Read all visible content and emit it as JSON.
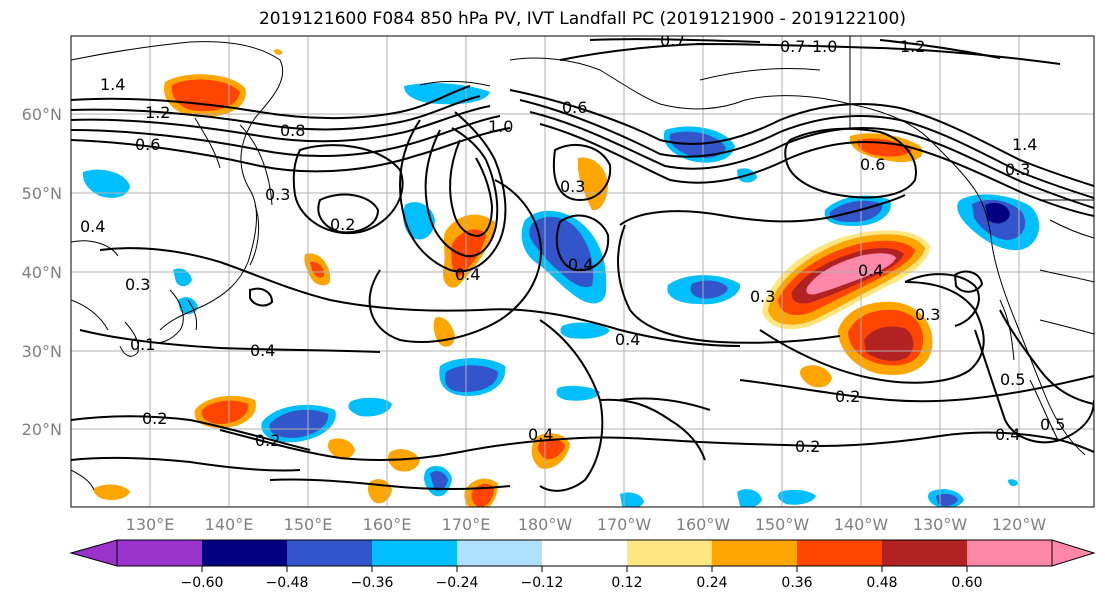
{
  "title": "2019121600 F084 850 hPa PV, IVT Landfall PC (2019121900 - 2019122100)",
  "lat_labels": [
    "60°N",
    "50°N",
    "40°N",
    "30°N",
    "20°N"
  ],
  "lon_labels": [
    "130°E",
    "140°E",
    "150°E",
    "160°E",
    "170°E",
    "180°W",
    "170°W",
    "160°W",
    "150°W",
    "140°W",
    "130°W",
    "120°W"
  ],
  "colorbar": {
    "tick_labels": [
      "−0.60",
      "−0.48",
      "−0.36",
      "−0.24",
      "−0.12",
      "0.12",
      "0.24",
      "0.36",
      "0.48",
      "0.60"
    ],
    "colors": [
      "#9933cc",
      "#000080",
      "#3355cc",
      "#00bfff",
      "#b0e0ff",
      "#ffffff",
      "#ffe680",
      "#ffa500",
      "#ff4500",
      "#b22222",
      "#ff88aa"
    ]
  },
  "contour_labels": [
    "1.4",
    "1.2",
    "0.6",
    "0.8",
    "0.3",
    "0.2",
    "0.4",
    "1.0",
    "0.7",
    "0.3",
    "0.4",
    "0.4",
    "0.3",
    "0.4",
    "0.6",
    "0.3",
    "0.2",
    "0.5",
    "0.5",
    "0.4",
    "0.2",
    "0.2",
    "1.4",
    "0.3",
    "0.4",
    "0.2",
    "0.4",
    "1.0",
    "1.2",
    "0.6",
    "0.7",
    "0.3",
    "0.4",
    "0.1"
  ],
  "fill_colors": {
    "light_blue": "#00bfff",
    "mid_blue": "#3355cc",
    "dark_blue": "#000080",
    "yellow": "#ffe680",
    "orange": "#ffa500",
    "red_orange": "#ff4500",
    "dark_red": "#b22222",
    "pink": "#ff88aa"
  }
}
